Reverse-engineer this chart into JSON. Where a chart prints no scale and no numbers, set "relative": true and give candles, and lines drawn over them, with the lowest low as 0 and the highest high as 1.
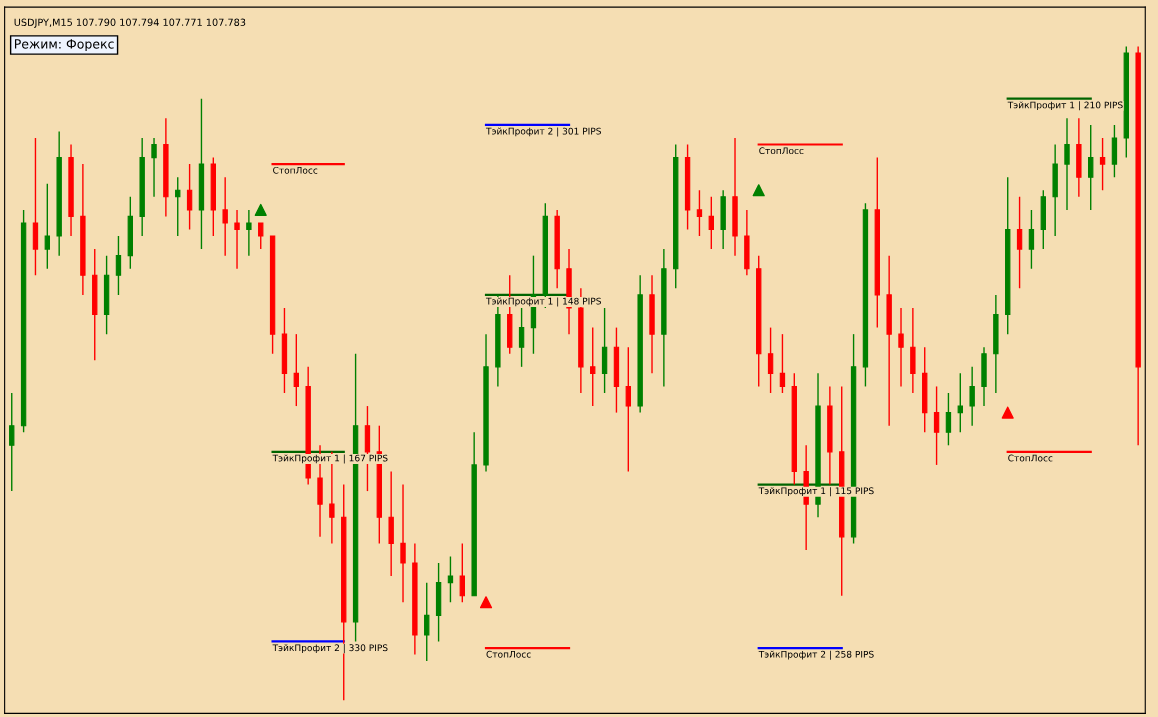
{
  "chart_data": {
    "type": "candlestick",
    "title": "USDJPY,M15 107.790 107.794 107.771 107.783",
    "annotations": [
      "Режим: Форекс"
    ],
    "relative": true,
    "tick_labels": false,
    "categories": [
      null,
      null,
      null,
      null,
      null,
      null,
      null,
      null,
      null,
      null,
      null,
      null,
      null,
      null,
      null,
      null,
      null,
      null,
      null,
      null,
      null,
      null,
      null,
      null,
      null,
      null,
      null,
      null,
      null,
      null,
      null,
      null,
      null,
      null,
      null,
      null,
      null,
      null,
      null,
      null,
      null,
      null,
      null,
      null,
      null,
      null,
      null,
      null,
      null,
      null,
      null,
      null,
      null,
      null,
      null,
      null,
      null,
      null,
      null,
      null,
      null,
      null,
      null,
      null,
      null,
      null,
      null,
      null,
      null,
      null,
      null,
      null,
      null,
      null,
      null,
      null,
      null,
      null,
      null,
      null,
      null,
      null,
      null,
      null,
      null,
      null,
      null,
      null,
      null,
      null,
      null,
      null,
      null,
      null,
      null,
      null
    ],
    "ohlc": [
      [
        0.39,
        0.47,
        0.32,
        0.42
      ],
      [
        0.42,
        0.75,
        0.41,
        0.73
      ],
      [
        0.73,
        0.86,
        0.65,
        0.69
      ],
      [
        0.69,
        0.79,
        0.66,
        0.71
      ],
      [
        0.71,
        0.87,
        0.68,
        0.83
      ],
      [
        0.83,
        0.85,
        0.71,
        0.74
      ],
      [
        0.74,
        0.82,
        0.62,
        0.65
      ],
      [
        0.65,
        0.69,
        0.52,
        0.59
      ],
      [
        0.59,
        0.68,
        0.56,
        0.65
      ],
      [
        0.65,
        0.71,
        0.62,
        0.68
      ],
      [
        0.68,
        0.77,
        0.66,
        0.74
      ],
      [
        0.74,
        0.86,
        0.71,
        0.83
      ],
      [
        0.83,
        0.86,
        0.77,
        0.85
      ],
      [
        0.85,
        0.89,
        0.74,
        0.77
      ],
      [
        0.77,
        0.8,
        0.71,
        0.78
      ],
      [
        0.78,
        0.82,
        0.72,
        0.75
      ],
      [
        0.75,
        0.92,
        0.69,
        0.82
      ],
      [
        0.82,
        0.83,
        0.71,
        0.75
      ],
      [
        0.75,
        0.8,
        0.68,
        0.73
      ],
      [
        0.73,
        0.75,
        0.66,
        0.72
      ],
      [
        0.72,
        0.75,
        0.68,
        0.73
      ],
      [
        0.73,
        0.73,
        0.69,
        0.71
      ],
      [
        0.71,
        0.71,
        0.53,
        0.56
      ],
      [
        0.56,
        0.6,
        0.47,
        0.5
      ],
      [
        0.5,
        0.56,
        0.45,
        0.48
      ],
      [
        0.48,
        0.51,
        0.33,
        0.34
      ],
      [
        0.34,
        0.39,
        0.25,
        0.3
      ],
      [
        0.3,
        0.38,
        0.24,
        0.28
      ],
      [
        0.28,
        0.33,
        0.0,
        0.12
      ],
      [
        0.12,
        0.53,
        0.09,
        0.42
      ],
      [
        0.42,
        0.45,
        0.32,
        0.38
      ],
      [
        0.38,
        0.42,
        0.24,
        0.28
      ],
      [
        0.28,
        0.35,
        0.19,
        0.24
      ],
      [
        0.24,
        0.33,
        0.15,
        0.21
      ],
      [
        0.21,
        0.24,
        0.07,
        0.1
      ],
      [
        0.1,
        0.18,
        0.06,
        0.13
      ],
      [
        0.13,
        0.21,
        0.09,
        0.18
      ],
      [
        0.18,
        0.22,
        0.15,
        0.19
      ],
      [
        0.19,
        0.24,
        0.15,
        0.16
      ],
      [
        0.16,
        0.41,
        0.16,
        0.36
      ],
      [
        0.36,
        0.56,
        0.35,
        0.51
      ],
      [
        0.51,
        0.62,
        0.48,
        0.59
      ],
      [
        0.59,
        0.65,
        0.53,
        0.54
      ],
      [
        0.54,
        0.6,
        0.51,
        0.57
      ],
      [
        0.57,
        0.68,
        0.53,
        0.62
      ],
      [
        0.62,
        0.76,
        0.6,
        0.74
      ],
      [
        0.74,
        0.75,
        0.63,
        0.66
      ],
      [
        0.66,
        0.69,
        0.56,
        0.6
      ],
      [
        0.6,
        0.63,
        0.47,
        0.51
      ],
      [
        0.51,
        0.57,
        0.45,
        0.5
      ],
      [
        0.5,
        0.6,
        0.47,
        0.54
      ],
      [
        0.54,
        0.57,
        0.44,
        0.48
      ],
      [
        0.48,
        0.54,
        0.35,
        0.45
      ],
      [
        0.45,
        0.65,
        0.44,
        0.62
      ],
      [
        0.62,
        0.65,
        0.5,
        0.56
      ],
      [
        0.56,
        0.69,
        0.48,
        0.66
      ],
      [
        0.66,
        0.85,
        0.63,
        0.83
      ],
      [
        0.83,
        0.85,
        0.72,
        0.75
      ],
      [
        0.75,
        0.78,
        0.71,
        0.74
      ],
      [
        0.74,
        0.77,
        0.69,
        0.72
      ],
      [
        0.72,
        0.78,
        0.69,
        0.77
      ],
      [
        0.77,
        0.86,
        0.68,
        0.71
      ],
      [
        0.71,
        0.75,
        0.65,
        0.66
      ],
      [
        0.66,
        0.68,
        0.48,
        0.53
      ],
      [
        0.53,
        0.57,
        0.47,
        0.5
      ],
      [
        0.5,
        0.56,
        0.47,
        0.48
      ],
      [
        0.48,
        0.5,
        0.33,
        0.35
      ],
      [
        0.35,
        0.39,
        0.23,
        0.3
      ],
      [
        0.3,
        0.5,
        0.28,
        0.45
      ],
      [
        0.45,
        0.48,
        0.33,
        0.38
      ],
      [
        0.38,
        0.48,
        0.16,
        0.25
      ],
      [
        0.25,
        0.56,
        0.24,
        0.51
      ],
      [
        0.51,
        0.76,
        0.48,
        0.75
      ],
      [
        0.75,
        0.83,
        0.57,
        0.62
      ],
      [
        0.62,
        0.68,
        0.42,
        0.56
      ],
      [
        0.56,
        0.6,
        0.48,
        0.54
      ],
      [
        0.54,
        0.6,
        0.47,
        0.5
      ],
      [
        0.5,
        0.54,
        0.41,
        0.44
      ],
      [
        0.44,
        0.48,
        0.36,
        0.41
      ],
      [
        0.41,
        0.47,
        0.39,
        0.44
      ],
      [
        0.44,
        0.5,
        0.41,
        0.45
      ],
      [
        0.45,
        0.51,
        0.42,
        0.48
      ],
      [
        0.48,
        0.54,
        0.45,
        0.53
      ],
      [
        0.53,
        0.62,
        0.47,
        0.59
      ],
      [
        0.59,
        0.8,
        0.56,
        0.72
      ],
      [
        0.72,
        0.77,
        0.63,
        0.69
      ],
      [
        0.69,
        0.75,
        0.66,
        0.72
      ],
      [
        0.72,
        0.78,
        0.69,
        0.77
      ],
      [
        0.77,
        0.85,
        0.71,
        0.82
      ],
      [
        0.82,
        0.89,
        0.75,
        0.85
      ],
      [
        0.85,
        0.89,
        0.77,
        0.8
      ],
      [
        0.8,
        0.88,
        0.75,
        0.83
      ],
      [
        0.83,
        0.86,
        0.78,
        0.82
      ],
      [
        0.82,
        0.88,
        0.8,
        0.86
      ],
      [
        0.86,
        1.0,
        0.83,
        0.99
      ],
      [
        0.99,
        1.0,
        0.39,
        0.51
      ]
    ],
    "colors": [
      "#008000",
      "#008000",
      "#ff0000",
      "#008000",
      "#008000",
      "#ff0000",
      "#ff0000",
      "#ff0000",
      "#008000",
      "#008000",
      "#008000",
      "#008000",
      "#008000",
      "#ff0000",
      "#008000",
      "#ff0000",
      "#008000",
      "#ff0000",
      "#ff0000",
      "#ff0000",
      "#008000",
      "#ff0000",
      "#ff0000",
      "#ff0000",
      "#ff0000",
      "#ff0000",
      "#ff0000",
      "#ff0000",
      "#ff0000",
      "#008000",
      "#ff0000",
      "#ff0000",
      "#ff0000",
      "#ff0000",
      "#ff0000",
      "#008000",
      "#008000",
      "#008000",
      "#ff0000",
      "#008000",
      "#008000",
      "#008000",
      "#ff0000",
      "#008000",
      "#008000",
      "#008000",
      "#ff0000",
      "#ff0000",
      "#ff0000",
      "#ff0000",
      "#008000",
      "#ff0000",
      "#ff0000",
      "#008000",
      "#ff0000",
      "#008000",
      "#008000",
      "#ff0000",
      "#ff0000",
      "#ff0000",
      "#008000",
      "#ff0000",
      "#ff0000",
      "#ff0000",
      "#ff0000",
      "#ff0000",
      "#ff0000",
      "#ff0000",
      "#008000",
      "#ff0000",
      "#ff0000",
      "#008000",
      "#008000",
      "#ff0000",
      "#ff0000",
      "#ff0000",
      "#ff0000",
      "#ff0000",
      "#ff0000",
      "#008000",
      "#008000",
      "#008000",
      "#008000",
      "#008000",
      "#008000",
      "#ff0000",
      "#008000",
      "#008000",
      "#008000",
      "#008000",
      "#ff0000",
      "#008000",
      "#ff0000",
      "#008000",
      "#008000",
      "#ff0000"
    ],
    "series": [
      {
        "type": "line",
        "name": "СтопЛосс",
        "color": "#ff0000",
        "values": [
          null,
          null,
          null,
          null,
          null,
          null,
          null,
          null,
          null,
          null,
          null,
          null,
          null,
          null,
          null,
          null,
          null,
          null,
          null,
          null,
          null,
          null,
          0.82,
          0.82,
          0.82,
          0.82,
          0.82,
          0.82,
          0.82,
          null,
          null,
          null,
          null,
          null,
          null,
          null,
          null,
          null,
          null,
          null,
          null,
          null,
          null,
          null,
          null,
          null,
          null,
          null,
          null,
          null,
          null,
          null,
          null,
          null,
          null,
          null,
          null,
          null,
          null,
          null,
          null,
          null,
          null,
          null,
          null,
          null,
          null,
          null,
          null,
          null,
          null,
          null,
          null,
          null,
          null,
          null,
          null,
          null,
          null,
          null,
          null,
          null,
          null,
          null,
          null,
          null,
          null,
          null,
          null,
          null,
          null,
          null,
          null,
          null,
          null,
          null
        ]
      },
      {
        "type": "line",
        "name": "ТэйкПрофит 1 | 167 PIPS",
        "color": "#006400",
        "values": [
          null,
          null,
          null,
          null,
          null,
          null,
          null,
          null,
          null,
          null,
          null,
          null,
          null,
          null,
          null,
          null,
          null,
          null,
          null,
          null,
          null,
          null,
          0.38,
          0.38,
          0.38,
          0.38,
          0.38,
          0.38,
          0.38,
          null,
          null,
          null,
          null,
          null,
          null,
          null,
          null,
          null,
          null,
          null,
          null,
          null,
          null,
          null,
          null,
          null,
          null,
          null,
          null,
          null,
          null,
          null,
          null,
          null,
          null,
          null,
          null,
          null,
          null,
          null,
          null,
          null,
          null,
          null,
          null,
          null,
          null,
          null,
          null,
          null,
          null,
          null,
          null,
          null,
          null,
          null,
          null,
          null,
          null,
          null,
          null,
          null,
          null,
          null,
          null,
          null,
          null,
          null,
          null,
          null,
          null,
          null,
          null,
          null,
          null,
          null
        ]
      },
      {
        "type": "line",
        "name": "ТэйкПрофит 2 | 330 PIPS",
        "color": "#0000ff",
        "values": [
          null,
          null,
          null,
          null,
          null,
          null,
          null,
          null,
          null,
          null,
          null,
          null,
          null,
          null,
          null,
          null,
          null,
          null,
          null,
          null,
          null,
          null,
          0.09,
          0.09,
          0.09,
          0.09,
          0.09,
          0.09,
          0.09,
          null,
          null,
          null,
          null,
          null,
          null,
          null,
          null,
          null,
          null,
          null,
          null,
          null,
          null,
          null,
          null,
          null,
          null,
          null,
          null,
          null,
          null,
          null,
          null,
          null,
          null,
          null,
          null,
          null,
          null,
          null,
          null,
          null,
          null,
          null,
          null,
          null,
          null,
          null,
          null,
          null,
          null,
          null,
          null,
          null,
          null,
          null,
          null,
          null,
          null,
          null,
          null,
          null,
          null,
          null,
          null,
          null,
          null,
          null,
          null,
          null,
          null,
          null,
          null,
          null,
          null,
          null
        ]
      },
      {
        "type": "line",
        "name": "ТэйкПрофит 2 | 301 PIPS",
        "color": "#0000ff",
        "values": [
          null,
          null,
          null,
          null,
          null,
          null,
          null,
          null,
          null,
          null,
          null,
          null,
          null,
          null,
          null,
          null,
          null,
          null,
          null,
          null,
          null,
          null,
          null,
          null,
          null,
          null,
          null,
          null,
          null,
          null,
          null,
          null,
          null,
          null,
          null,
          null,
          null,
          null,
          null,
          null,
          0.88,
          0.88,
          0.88,
          0.88,
          0.88,
          0.88,
          0.88,
          0.88,
          null,
          null,
          null,
          null,
          null,
          null,
          null,
          null,
          null,
          null,
          null,
          null,
          null,
          null,
          null,
          null,
          null,
          null,
          null,
          null,
          null,
          null,
          null,
          null,
          null,
          null,
          null,
          null,
          null,
          null,
          null,
          null,
          null,
          null,
          null,
          null,
          null,
          null,
          null,
          null,
          null,
          null,
          null,
          null,
          null,
          null,
          null,
          null
        ]
      },
      {
        "type": "line",
        "name": "ТэйкПрофит 1 | 148 PIPS",
        "color": "#006400",
        "values": [
          null,
          null,
          null,
          null,
          null,
          null,
          null,
          null,
          null,
          null,
          null,
          null,
          null,
          null,
          null,
          null,
          null,
          null,
          null,
          null,
          null,
          null,
          null,
          null,
          null,
          null,
          null,
          null,
          null,
          null,
          null,
          null,
          null,
          null,
          null,
          null,
          null,
          null,
          null,
          null,
          0.62,
          0.62,
          0.62,
          0.62,
          0.62,
          0.62,
          0.62,
          0.62,
          null,
          null,
          null,
          null,
          null,
          null,
          null,
          null,
          null,
          null,
          null,
          null,
          null,
          null,
          null,
          null,
          null,
          null,
          null,
          null,
          null,
          null,
          null,
          null,
          null,
          null,
          null,
          null,
          null,
          null,
          null,
          null,
          null,
          null,
          null,
          null,
          null,
          null,
          null,
          null,
          null,
          null,
          null,
          null,
          null,
          null,
          null,
          null
        ]
      },
      {
        "type": "line",
        "name": "СтопЛосс",
        "color": "#ff0000",
        "values": [
          null,
          null,
          null,
          null,
          null,
          null,
          null,
          null,
          null,
          null,
          null,
          null,
          null,
          null,
          null,
          null,
          null,
          null,
          null,
          null,
          null,
          null,
          null,
          null,
          null,
          null,
          null,
          null,
          null,
          null,
          null,
          null,
          null,
          null,
          null,
          null,
          null,
          null,
          null,
          null,
          0.08,
          0.08,
          0.08,
          0.08,
          0.08,
          0.08,
          0.08,
          0.08,
          null,
          null,
          null,
          null,
          null,
          null,
          null,
          null,
          null,
          null,
          null,
          null,
          null,
          null,
          null,
          null,
          null,
          null,
          null,
          null,
          null,
          null,
          null,
          null,
          null,
          null,
          null,
          null,
          null,
          null,
          null,
          null,
          null,
          null,
          null,
          null,
          null,
          null,
          null,
          null,
          null,
          null,
          null,
          null,
          null,
          null,
          null,
          null
        ]
      },
      {
        "type": "line",
        "name": "СтопЛосс",
        "color": "#ff0000",
        "values": [
          null,
          null,
          null,
          null,
          null,
          null,
          null,
          null,
          null,
          null,
          null,
          null,
          null,
          null,
          null,
          null,
          null,
          null,
          null,
          null,
          null,
          null,
          null,
          null,
          null,
          null,
          null,
          null,
          null,
          null,
          null,
          null,
          null,
          null,
          null,
          null,
          null,
          null,
          null,
          null,
          null,
          null,
          null,
          null,
          null,
          null,
          null,
          null,
          null,
          null,
          null,
          null,
          null,
          null,
          null,
          null,
          null,
          null,
          null,
          null,
          null,
          null,
          null,
          0.85,
          0.85,
          0.85,
          0.85,
          0.85,
          0.85,
          0.85,
          0.85,
          null,
          null,
          null,
          null,
          null,
          null,
          null,
          null,
          null,
          null,
          null,
          null,
          null,
          null,
          null,
          null,
          null,
          null,
          null,
          null,
          null,
          null,
          null,
          null,
          null
        ]
      },
      {
        "type": "line",
        "name": "ТэйкПрофит 1 | 115 PIPS",
        "color": "#006400",
        "values": [
          null,
          null,
          null,
          null,
          null,
          null,
          null,
          null,
          null,
          null,
          null,
          null,
          null,
          null,
          null,
          null,
          null,
          null,
          null,
          null,
          null,
          null,
          null,
          null,
          null,
          null,
          null,
          null,
          null,
          null,
          null,
          null,
          null,
          null,
          null,
          null,
          null,
          null,
          null,
          null,
          null,
          null,
          null,
          null,
          null,
          null,
          null,
          null,
          null,
          null,
          null,
          null,
          null,
          null,
          null,
          null,
          null,
          null,
          null,
          null,
          null,
          null,
          null,
          0.33,
          0.33,
          0.33,
          0.33,
          0.33,
          0.33,
          0.33,
          0.33,
          null,
          null,
          null,
          null,
          null,
          null,
          null,
          null,
          null,
          null,
          null,
          null,
          null,
          null,
          null,
          null,
          null,
          null,
          null,
          null,
          null,
          null,
          null,
          null,
          null
        ]
      },
      {
        "type": "line",
        "name": "ТэйкПрофит 2 | 258 PIPS",
        "color": "#0000ff",
        "values": [
          null,
          null,
          null,
          null,
          null,
          null,
          null,
          null,
          null,
          null,
          null,
          null,
          null,
          null,
          null,
          null,
          null,
          null,
          null,
          null,
          null,
          null,
          null,
          null,
          null,
          null,
          null,
          null,
          null,
          null,
          null,
          null,
          null,
          null,
          null,
          null,
          null,
          null,
          null,
          null,
          null,
          null,
          null,
          null,
          null,
          null,
          null,
          null,
          null,
          null,
          null,
          null,
          null,
          null,
          null,
          null,
          null,
          null,
          null,
          null,
          null,
          null,
          null,
          0.08,
          0.08,
          0.08,
          0.08,
          0.08,
          0.08,
          0.08,
          0.08,
          null,
          null,
          null,
          null,
          null,
          null,
          null,
          null,
          null,
          null,
          null,
          null,
          null,
          null,
          null,
          null,
          null,
          null,
          null,
          null,
          null,
          null,
          null,
          null,
          null
        ]
      },
      {
        "type": "line",
        "name": "ТэйкПрофит 1 | 210 PIPS",
        "color": "#006400",
        "values": [
          null,
          null,
          null,
          null,
          null,
          null,
          null,
          null,
          null,
          null,
          null,
          null,
          null,
          null,
          null,
          null,
          null,
          null,
          null,
          null,
          null,
          null,
          null,
          null,
          null,
          null,
          null,
          null,
          null,
          null,
          null,
          null,
          null,
          null,
          null,
          null,
          null,
          null,
          null,
          null,
          null,
          null,
          null,
          null,
          null,
          null,
          null,
          null,
          null,
          null,
          null,
          null,
          null,
          null,
          null,
          null,
          null,
          null,
          null,
          null,
          null,
          null,
          null,
          null,
          null,
          null,
          null,
          null,
          null,
          null,
          null,
          null,
          null,
          null,
          null,
          null,
          null,
          null,
          null,
          null,
          null,
          null,
          null,
          null,
          0.92,
          0.92,
          0.92,
          0.92,
          0.92,
          0.92,
          0.92,
          0.92,
          null,
          null,
          null,
          null
        ]
      },
      {
        "type": "line",
        "name": "СтопЛосс",
        "color": "#ff0000",
        "values": [
          null,
          null,
          null,
          null,
          null,
          null,
          null,
          null,
          null,
          null,
          null,
          null,
          null,
          null,
          null,
          null,
          null,
          null,
          null,
          null,
          null,
          null,
          null,
          null,
          null,
          null,
          null,
          null,
          null,
          null,
          null,
          null,
          null,
          null,
          null,
          null,
          null,
          null,
          null,
          null,
          null,
          null,
          null,
          null,
          null,
          null,
          null,
          null,
          null,
          null,
          null,
          null,
          null,
          null,
          null,
          null,
          null,
          null,
          null,
          null,
          null,
          null,
          null,
          null,
          null,
          null,
          null,
          null,
          null,
          null,
          null,
          null,
          null,
          null,
          null,
          null,
          null,
          null,
          null,
          null,
          null,
          null,
          null,
          null,
          0.38,
          0.38,
          0.38,
          0.38,
          0.38,
          0.38,
          0.38,
          0.38,
          null,
          null,
          null,
          null
        ]
      },
      {
        "type": "scatter",
        "marker": "triangle",
        "color": "#008000",
        "values": [
          null,
          null,
          null,
          null,
          null,
          null,
          null,
          null,
          null,
          null,
          null,
          null,
          null,
          null,
          null,
          null,
          null,
          null,
          null,
          null,
          null,
          0.75,
          null,
          null,
          null,
          null,
          null,
          null,
          null,
          null,
          null,
          null,
          null,
          null,
          null,
          null,
          null,
          null,
          null,
          null,
          null,
          null,
          null,
          null,
          null,
          null,
          null,
          null,
          null,
          null,
          null,
          null,
          null,
          null,
          null,
          null,
          null,
          null,
          null,
          null,
          null,
          null,
          null,
          0.78,
          null,
          null,
          null,
          null,
          null,
          null,
          null,
          null,
          null,
          null,
          null,
          null,
          null,
          null,
          null,
          null,
          null,
          null,
          null,
          null,
          null,
          null,
          null,
          null,
          null,
          null,
          null,
          null,
          null,
          null,
          null,
          null
        ]
      },
      {
        "type": "scatter",
        "marker": "triangle",
        "color": "#ff0000",
        "values": [
          null,
          null,
          null,
          null,
          null,
          null,
          null,
          null,
          null,
          null,
          null,
          null,
          null,
          null,
          null,
          null,
          null,
          null,
          null,
          null,
          null,
          null,
          null,
          null,
          null,
          null,
          null,
          null,
          null,
          null,
          null,
          null,
          null,
          null,
          null,
          null,
          null,
          null,
          null,
          null,
          0.15,
          null,
          null,
          null,
          null,
          null,
          null,
          null,
          null,
          null,
          null,
          null,
          null,
          null,
          null,
          null,
          null,
          null,
          null,
          null,
          null,
          null,
          null,
          null,
          null,
          null,
          null,
          null,
          null,
          null,
          null,
          null,
          null,
          null,
          null,
          null,
          null,
          null,
          null,
          null,
          null,
          null,
          null,
          null,
          0.44,
          null,
          null,
          null,
          null,
          null,
          null,
          null,
          null,
          null,
          null,
          null
        ]
      }
    ]
  }
}
